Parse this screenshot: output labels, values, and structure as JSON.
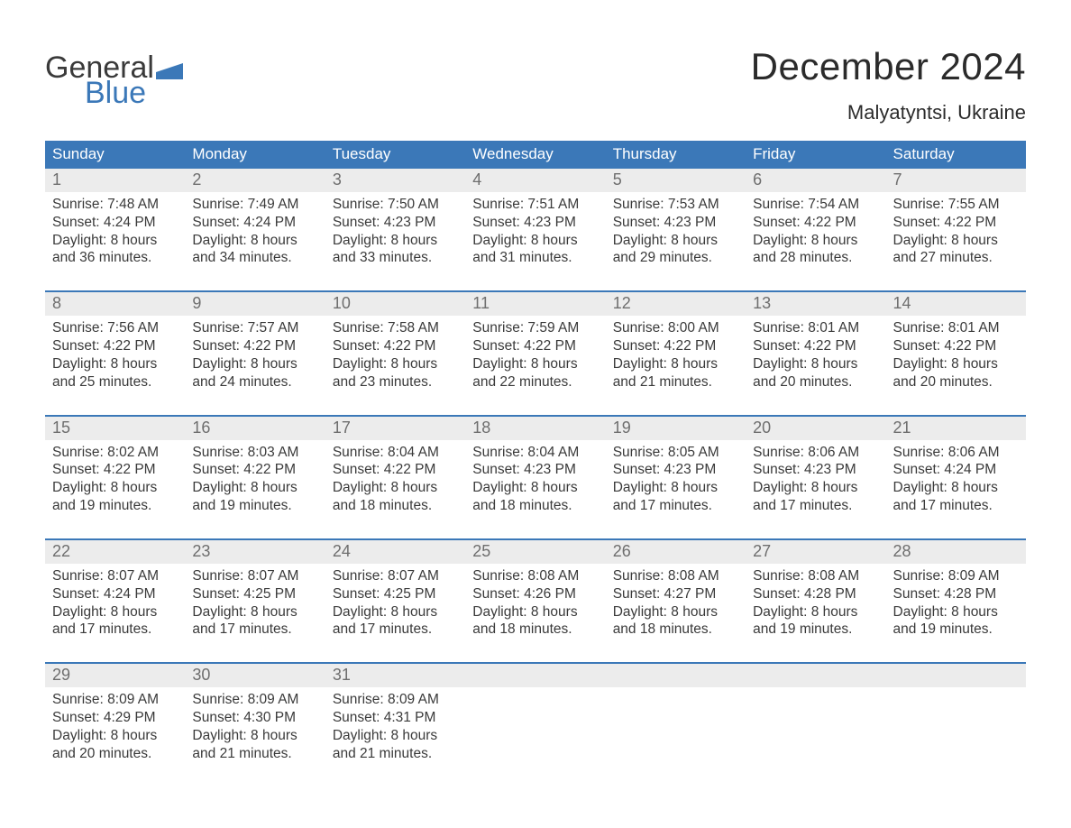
{
  "logo": {
    "word1": "General",
    "word2": "Blue",
    "mark_color": "#3b78b8",
    "text_color": "#3a3a3a"
  },
  "title": "December 2024",
  "location": "Malyatyntsi, Ukraine",
  "colors": {
    "header_bg": "#3b78b8",
    "header_text": "#ffffff",
    "daynum_bg": "#ececec",
    "daynum_text": "#6e6e6e",
    "body_text": "#3a3a3a",
    "week_border": "#3b78b8",
    "page_bg": "#ffffff"
  },
  "fonts": {
    "title_pt": 42,
    "location_pt": 22,
    "dow_pt": 17,
    "daynum_pt": 18,
    "detail_pt": 15.5
  },
  "days_of_week": [
    "Sunday",
    "Monday",
    "Tuesday",
    "Wednesday",
    "Thursday",
    "Friday",
    "Saturday"
  ],
  "weeks": [
    [
      {
        "n": "1",
        "sr": "Sunrise: 7:48 AM",
        "ss": "Sunset: 4:24 PM",
        "d1": "Daylight: 8 hours",
        "d2": "and 36 minutes."
      },
      {
        "n": "2",
        "sr": "Sunrise: 7:49 AM",
        "ss": "Sunset: 4:24 PM",
        "d1": "Daylight: 8 hours",
        "d2": "and 34 minutes."
      },
      {
        "n": "3",
        "sr": "Sunrise: 7:50 AM",
        "ss": "Sunset: 4:23 PM",
        "d1": "Daylight: 8 hours",
        "d2": "and 33 minutes."
      },
      {
        "n": "4",
        "sr": "Sunrise: 7:51 AM",
        "ss": "Sunset: 4:23 PM",
        "d1": "Daylight: 8 hours",
        "d2": "and 31 minutes."
      },
      {
        "n": "5",
        "sr": "Sunrise: 7:53 AM",
        "ss": "Sunset: 4:23 PM",
        "d1": "Daylight: 8 hours",
        "d2": "and 29 minutes."
      },
      {
        "n": "6",
        "sr": "Sunrise: 7:54 AM",
        "ss": "Sunset: 4:22 PM",
        "d1": "Daylight: 8 hours",
        "d2": "and 28 minutes."
      },
      {
        "n": "7",
        "sr": "Sunrise: 7:55 AM",
        "ss": "Sunset: 4:22 PM",
        "d1": "Daylight: 8 hours",
        "d2": "and 27 minutes."
      }
    ],
    [
      {
        "n": "8",
        "sr": "Sunrise: 7:56 AM",
        "ss": "Sunset: 4:22 PM",
        "d1": "Daylight: 8 hours",
        "d2": "and 25 minutes."
      },
      {
        "n": "9",
        "sr": "Sunrise: 7:57 AM",
        "ss": "Sunset: 4:22 PM",
        "d1": "Daylight: 8 hours",
        "d2": "and 24 minutes."
      },
      {
        "n": "10",
        "sr": "Sunrise: 7:58 AM",
        "ss": "Sunset: 4:22 PM",
        "d1": "Daylight: 8 hours",
        "d2": "and 23 minutes."
      },
      {
        "n": "11",
        "sr": "Sunrise: 7:59 AM",
        "ss": "Sunset: 4:22 PM",
        "d1": "Daylight: 8 hours",
        "d2": "and 22 minutes."
      },
      {
        "n": "12",
        "sr": "Sunrise: 8:00 AM",
        "ss": "Sunset: 4:22 PM",
        "d1": "Daylight: 8 hours",
        "d2": "and 21 minutes."
      },
      {
        "n": "13",
        "sr": "Sunrise: 8:01 AM",
        "ss": "Sunset: 4:22 PM",
        "d1": "Daylight: 8 hours",
        "d2": "and 20 minutes."
      },
      {
        "n": "14",
        "sr": "Sunrise: 8:01 AM",
        "ss": "Sunset: 4:22 PM",
        "d1": "Daylight: 8 hours",
        "d2": "and 20 minutes."
      }
    ],
    [
      {
        "n": "15",
        "sr": "Sunrise: 8:02 AM",
        "ss": "Sunset: 4:22 PM",
        "d1": "Daylight: 8 hours",
        "d2": "and 19 minutes."
      },
      {
        "n": "16",
        "sr": "Sunrise: 8:03 AM",
        "ss": "Sunset: 4:22 PM",
        "d1": "Daylight: 8 hours",
        "d2": "and 19 minutes."
      },
      {
        "n": "17",
        "sr": "Sunrise: 8:04 AM",
        "ss": "Sunset: 4:22 PM",
        "d1": "Daylight: 8 hours",
        "d2": "and 18 minutes."
      },
      {
        "n": "18",
        "sr": "Sunrise: 8:04 AM",
        "ss": "Sunset: 4:23 PM",
        "d1": "Daylight: 8 hours",
        "d2": "and 18 minutes."
      },
      {
        "n": "19",
        "sr": "Sunrise: 8:05 AM",
        "ss": "Sunset: 4:23 PM",
        "d1": "Daylight: 8 hours",
        "d2": "and 17 minutes."
      },
      {
        "n": "20",
        "sr": "Sunrise: 8:06 AM",
        "ss": "Sunset: 4:23 PM",
        "d1": "Daylight: 8 hours",
        "d2": "and 17 minutes."
      },
      {
        "n": "21",
        "sr": "Sunrise: 8:06 AM",
        "ss": "Sunset: 4:24 PM",
        "d1": "Daylight: 8 hours",
        "d2": "and 17 minutes."
      }
    ],
    [
      {
        "n": "22",
        "sr": "Sunrise: 8:07 AM",
        "ss": "Sunset: 4:24 PM",
        "d1": "Daylight: 8 hours",
        "d2": "and 17 minutes."
      },
      {
        "n": "23",
        "sr": "Sunrise: 8:07 AM",
        "ss": "Sunset: 4:25 PM",
        "d1": "Daylight: 8 hours",
        "d2": "and 17 minutes."
      },
      {
        "n": "24",
        "sr": "Sunrise: 8:07 AM",
        "ss": "Sunset: 4:25 PM",
        "d1": "Daylight: 8 hours",
        "d2": "and 17 minutes."
      },
      {
        "n": "25",
        "sr": "Sunrise: 8:08 AM",
        "ss": "Sunset: 4:26 PM",
        "d1": "Daylight: 8 hours",
        "d2": "and 18 minutes."
      },
      {
        "n": "26",
        "sr": "Sunrise: 8:08 AM",
        "ss": "Sunset: 4:27 PM",
        "d1": "Daylight: 8 hours",
        "d2": "and 18 minutes."
      },
      {
        "n": "27",
        "sr": "Sunrise: 8:08 AM",
        "ss": "Sunset: 4:28 PM",
        "d1": "Daylight: 8 hours",
        "d2": "and 19 minutes."
      },
      {
        "n": "28",
        "sr": "Sunrise: 8:09 AM",
        "ss": "Sunset: 4:28 PM",
        "d1": "Daylight: 8 hours",
        "d2": "and 19 minutes."
      }
    ],
    [
      {
        "n": "29",
        "sr": "Sunrise: 8:09 AM",
        "ss": "Sunset: 4:29 PM",
        "d1": "Daylight: 8 hours",
        "d2": "and 20 minutes."
      },
      {
        "n": "30",
        "sr": "Sunrise: 8:09 AM",
        "ss": "Sunset: 4:30 PM",
        "d1": "Daylight: 8 hours",
        "d2": "and 21 minutes."
      },
      {
        "n": "31",
        "sr": "Sunrise: 8:09 AM",
        "ss": "Sunset: 4:31 PM",
        "d1": "Daylight: 8 hours",
        "d2": "and 21 minutes."
      },
      {
        "empty": true
      },
      {
        "empty": true
      },
      {
        "empty": true
      },
      {
        "empty": true
      }
    ]
  ]
}
